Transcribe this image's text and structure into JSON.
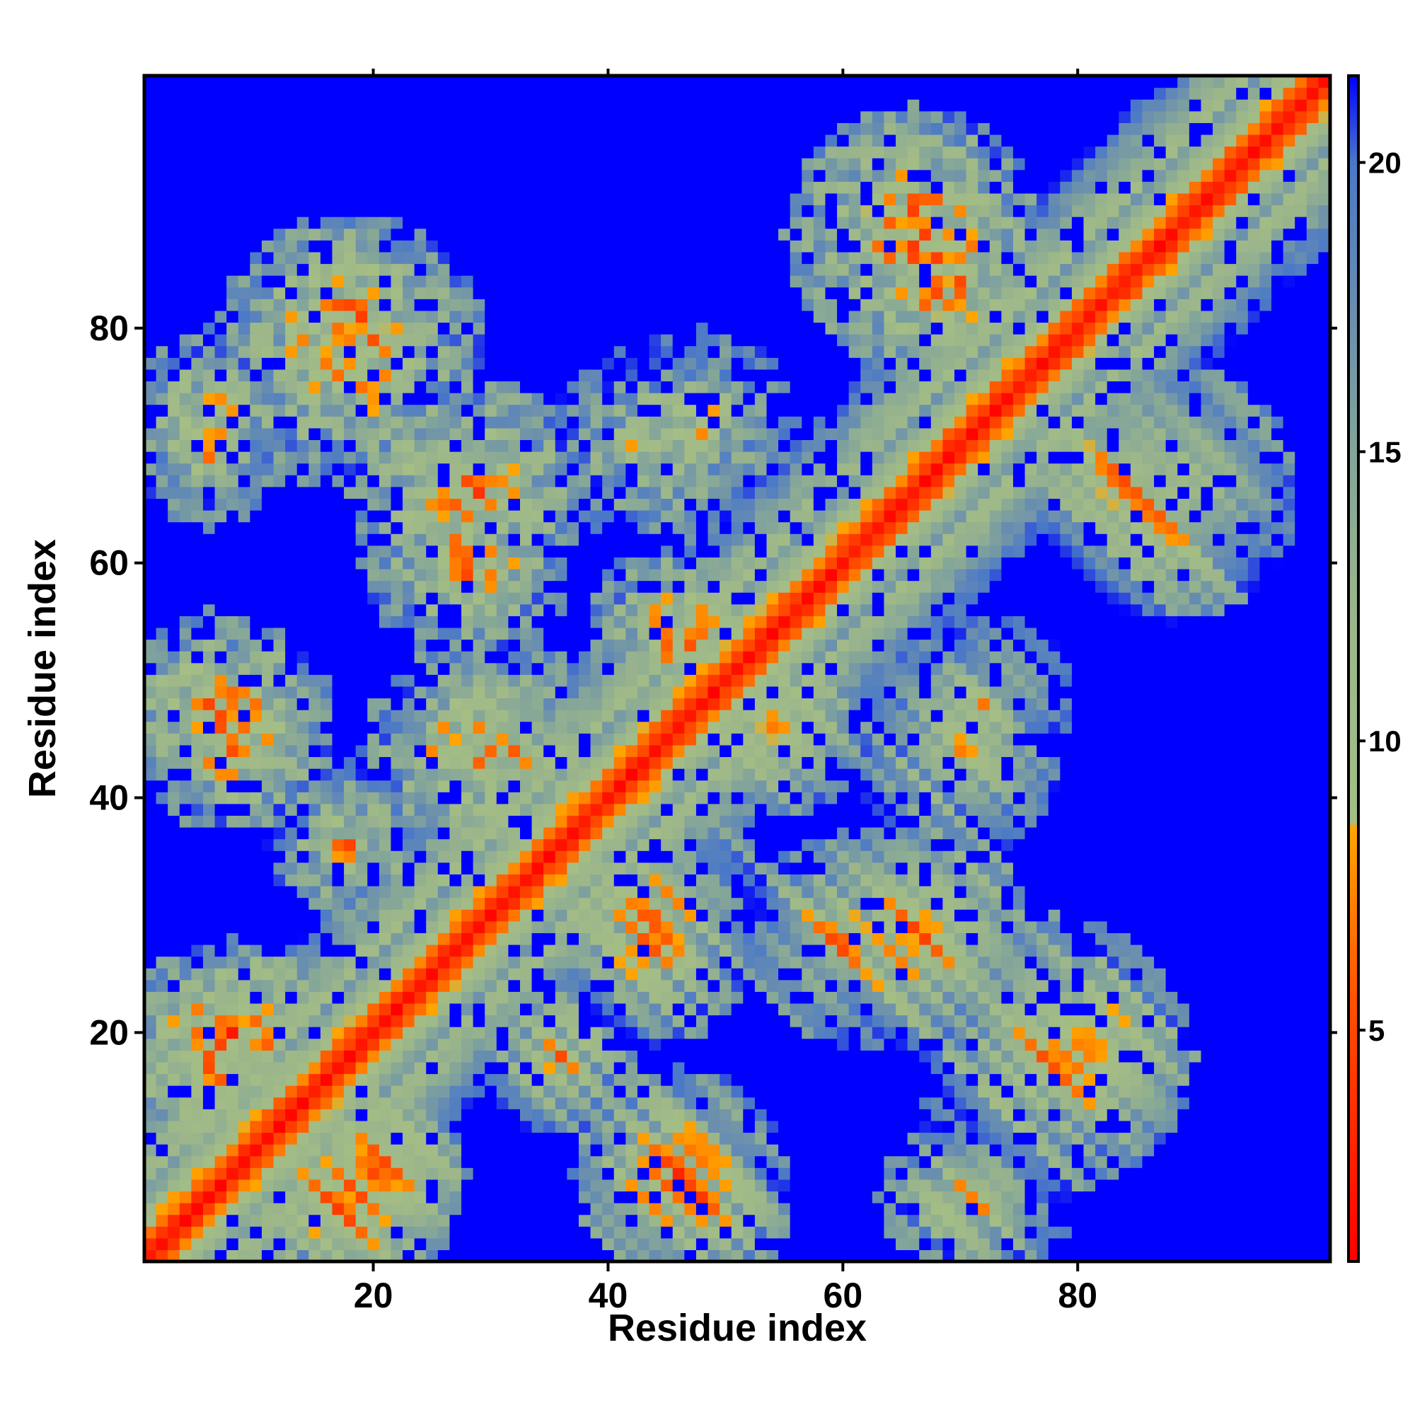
{
  "chart_data": {
    "type": "heatmap",
    "title": "",
    "xlabel": "Residue index",
    "ylabel": "Residue index",
    "n_residues": 101,
    "xlim": [
      1,
      101
    ],
    "ylim": [
      1,
      101
    ],
    "x_ticks": [
      20,
      40,
      60,
      80
    ],
    "y_ticks": [
      20,
      40,
      60,
      80
    ],
    "x_tick_labels": [
      "20",
      "40",
      "60",
      "80"
    ],
    "y_tick_labels": [
      "20",
      "40",
      "60",
      "80"
    ],
    "colorbar": {
      "range": [
        1,
        21.5
      ],
      "ticks": [
        5,
        10,
        15,
        20
      ],
      "tick_labels": [
        "5",
        "10",
        "15",
        "20"
      ],
      "stops": [
        {
          "value": 1,
          "color": "#ff0000"
        },
        {
          "value": 5.5,
          "color": "#ff5000"
        },
        {
          "value": 8.5,
          "color": "#ffa500"
        },
        {
          "value": 8.6,
          "color": "#a5be85"
        },
        {
          "value": 12,
          "color": "#9cb68a"
        },
        {
          "value": 15,
          "color": "#83a59a"
        },
        {
          "value": 17,
          "color": "#6e92ab"
        },
        {
          "value": 20,
          "color": "#4a78c8"
        },
        {
          "value": 21.5,
          "color": "#0000ff"
        }
      ],
      "cutoff_value": 21.5,
      "cutoff_color": "#0000ff"
    },
    "diagonal_band_width": 6,
    "contact_clusters": [
      {
        "x": 18,
        "y": 78,
        "radius": 12,
        "min_value": 8
      },
      {
        "x": 6,
        "y": 70,
        "radius": 7,
        "min_value": 9
      },
      {
        "x": 6,
        "y": 48,
        "radius": 8,
        "min_value": 8
      },
      {
        "x": 28,
        "y": 60,
        "radius": 9,
        "min_value": 8
      },
      {
        "x": 48,
        "y": 72,
        "radius": 8,
        "min_value": 10
      },
      {
        "x": 68,
        "y": 85,
        "radius": 10,
        "min_value": 7
      },
      {
        "x": 88,
        "y": 66,
        "radius": 11,
        "min_value": 7
      },
      {
        "x": 70,
        "y": 44,
        "radius": 9,
        "min_value": 10
      },
      {
        "x": 66,
        "y": 28,
        "radius": 10,
        "min_value": 7
      },
      {
        "x": 80,
        "y": 18,
        "radius": 10,
        "min_value": 7
      },
      {
        "x": 46,
        "y": 8,
        "radius": 9,
        "min_value": 7
      },
      {
        "x": 72,
        "y": 6,
        "radius": 8,
        "min_value": 9
      },
      {
        "x": 8,
        "y": 20,
        "radius": 8,
        "min_value": 6
      },
      {
        "x": 18,
        "y": 6,
        "radius": 9,
        "min_value": 7
      },
      {
        "x": 44,
        "y": 28,
        "radius": 9,
        "min_value": 8
      },
      {
        "x": 30,
        "y": 44,
        "radius": 10,
        "min_value": 8
      },
      {
        "x": 54,
        "y": 46,
        "radius": 8,
        "min_value": 8
      },
      {
        "x": 36,
        "y": 18,
        "radius": 7,
        "min_value": 9
      }
    ]
  }
}
